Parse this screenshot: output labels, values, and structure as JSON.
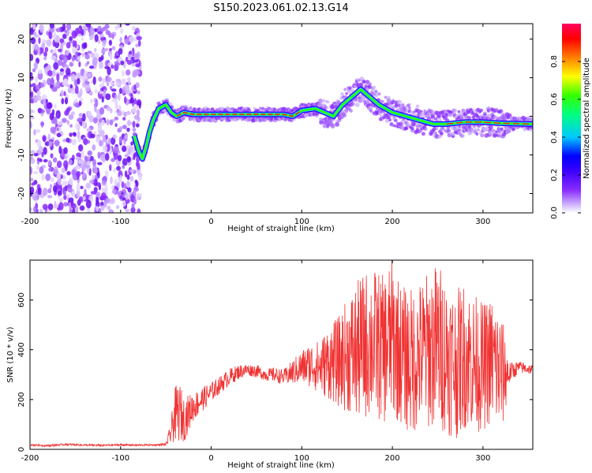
{
  "figure_title": "S150.2023.061.02.13.G14",
  "chart_data": [
    {
      "type": "heatmap",
      "title": "",
      "xlabel": "Height of straight line (km)",
      "ylabel": "Frequency (Hz)",
      "xlim": [
        -200,
        355
      ],
      "ylim": [
        -25,
        24
      ],
      "xticks": [
        -200,
        -100,
        0,
        100,
        200,
        300
      ],
      "yticks": [
        -20,
        -10,
        0,
        10,
        20
      ],
      "colorbar": {
        "label": "Normalized spectral amplitude",
        "range": [
          0,
          1
        ],
        "ticks": [
          "0.0",
          "0.2",
          "0.4",
          "0.6",
          "0.8"
        ],
        "colormap": [
          "#ffffff",
          "#c8a8ff",
          "#8a2cff",
          "#3b00ff",
          "#0000ff",
          "#00c8ff",
          "#00ff80",
          "#33ff00",
          "#ffff00",
          "#ff8000",
          "#ff0000",
          "#ff0060"
        ]
      },
      "noise_region_x": [
        -200,
        -78
      ],
      "ridge_trace": [
        {
          "x": -85,
          "y": -5
        },
        {
          "x": -80,
          "y": -9
        },
        {
          "x": -76,
          "y": -11
        },
        {
          "x": -72,
          "y": -8
        },
        {
          "x": -68,
          "y": -4
        },
        {
          "x": -64,
          "y": -1
        },
        {
          "x": -58,
          "y": 2
        },
        {
          "x": -50,
          "y": 3
        },
        {
          "x": -44,
          "y": 1
        },
        {
          "x": -38,
          "y": 0
        },
        {
          "x": -30,
          "y": 1
        },
        {
          "x": -20,
          "y": 0.5
        },
        {
          "x": 0,
          "y": 0.5
        },
        {
          "x": 40,
          "y": 0.5
        },
        {
          "x": 80,
          "y": 0.5
        },
        {
          "x": 90,
          "y": 0
        },
        {
          "x": 100,
          "y": 1.5
        },
        {
          "x": 115,
          "y": 2
        },
        {
          "x": 125,
          "y": 1
        },
        {
          "x": 135,
          "y": 0
        },
        {
          "x": 145,
          "y": 3
        },
        {
          "x": 155,
          "y": 5
        },
        {
          "x": 165,
          "y": 7
        },
        {
          "x": 175,
          "y": 5
        },
        {
          "x": 185,
          "y": 3
        },
        {
          "x": 200,
          "y": 1
        },
        {
          "x": 215,
          "y": 0
        },
        {
          "x": 230,
          "y": -1
        },
        {
          "x": 245,
          "y": -2
        },
        {
          "x": 260,
          "y": -2
        },
        {
          "x": 280,
          "y": -1.5
        },
        {
          "x": 300,
          "y": -1.5
        },
        {
          "x": 320,
          "y": -1.8
        },
        {
          "x": 355,
          "y": -2
        }
      ]
    },
    {
      "type": "line",
      "title": "",
      "xlabel": "Height of straight line (km)",
      "ylabel": "SNR (10 * v/v)",
      "xlim": [
        -200,
        355
      ],
      "ylim": [
        0,
        760
      ],
      "xticks": [
        -200,
        -100,
        0,
        100,
        200,
        300
      ],
      "yticks": [
        0,
        200,
        400,
        600
      ],
      "color": "#f03232",
      "series": [
        {
          "x": [
            -200,
            -180,
            -160,
            -140,
            -120,
            -100,
            -80,
            -60,
            -50,
            -45,
            -40,
            -35,
            -30,
            -20,
            -10,
            0,
            10,
            20,
            30,
            40,
            50,
            60,
            70,
            80,
            90,
            100,
            110,
            120,
            130,
            140,
            150,
            160,
            170,
            180,
            190,
            200,
            210,
            220,
            230,
            240,
            250,
            260,
            270,
            280,
            290,
            300,
            310,
            320,
            330,
            340,
            355
          ],
          "values": [
            18,
            15,
            20,
            17,
            16,
            18,
            17,
            18,
            20,
            60,
            140,
            150,
            120,
            170,
            200,
            230,
            260,
            290,
            310,
            320,
            315,
            300,
            300,
            290,
            310,
            330,
            340,
            330,
            350,
            350,
            380,
            390,
            420,
            430,
            400,
            450,
            380,
            350,
            380,
            400,
            420,
            380,
            340,
            380,
            350,
            330,
            360,
            300,
            310,
            330,
            320
          ],
          "spread": [
            4,
            4,
            4,
            4,
            4,
            4,
            4,
            4,
            6,
            40,
            110,
            120,
            90,
            60,
            50,
            40,
            35,
            35,
            30,
            25,
            25,
            25,
            30,
            30,
            50,
            70,
            90,
            110,
            150,
            180,
            230,
            280,
            300,
            300,
            300,
            330,
            280,
            300,
            300,
            320,
            340,
            320,
            300,
            300,
            280,
            260,
            260,
            260,
            40,
            25,
            20
          ]
        }
      ]
    }
  ]
}
